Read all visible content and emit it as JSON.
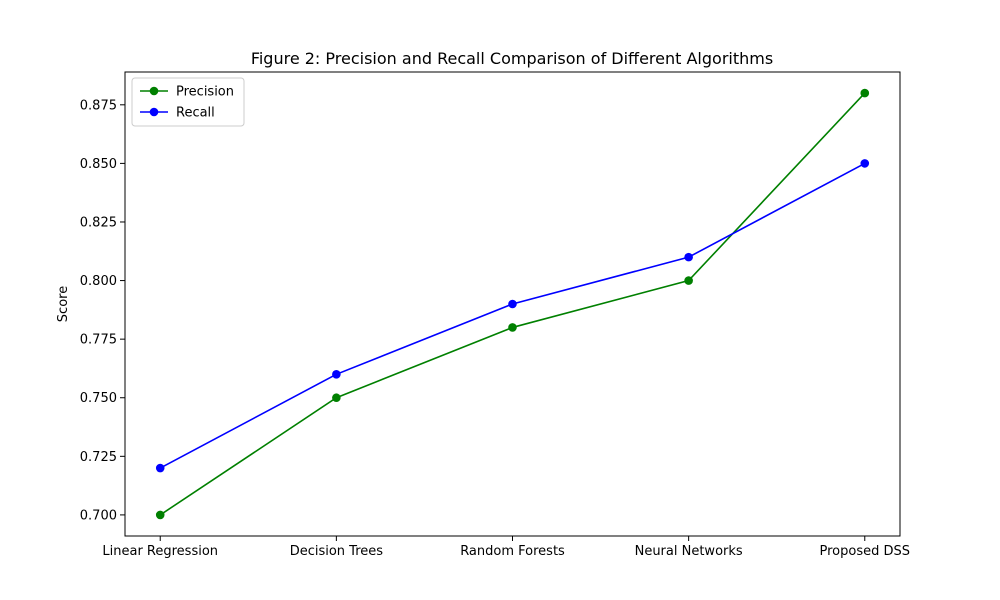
{
  "chart_data": {
    "type": "line",
    "title": "Figure 2: Precision and Recall Comparison of Different Algorithms",
    "xlabel": "",
    "ylabel": "Score",
    "categories": [
      "Linear Regression",
      "Decision Trees",
      "Random Forests",
      "Neural Networks",
      "Proposed DSS"
    ],
    "series": [
      {
        "name": "Precision",
        "color": "#008000",
        "marker": "circle",
        "values": [
          0.7,
          0.75,
          0.78,
          0.8,
          0.88
        ]
      },
      {
        "name": "Recall",
        "color": "#0000ff",
        "marker": "circle",
        "values": [
          0.72,
          0.76,
          0.79,
          0.81,
          0.85
        ]
      }
    ],
    "ylim": [
      0.691,
      0.889
    ],
    "yticks": [
      0.7,
      0.725,
      0.75,
      0.775,
      0.8,
      0.825,
      0.85,
      0.875
    ],
    "ytick_labels": [
      "0.700",
      "0.725",
      "0.750",
      "0.775",
      "0.800",
      "0.825",
      "0.850",
      "0.875"
    ],
    "grid": false,
    "legend_position": "top-left"
  }
}
